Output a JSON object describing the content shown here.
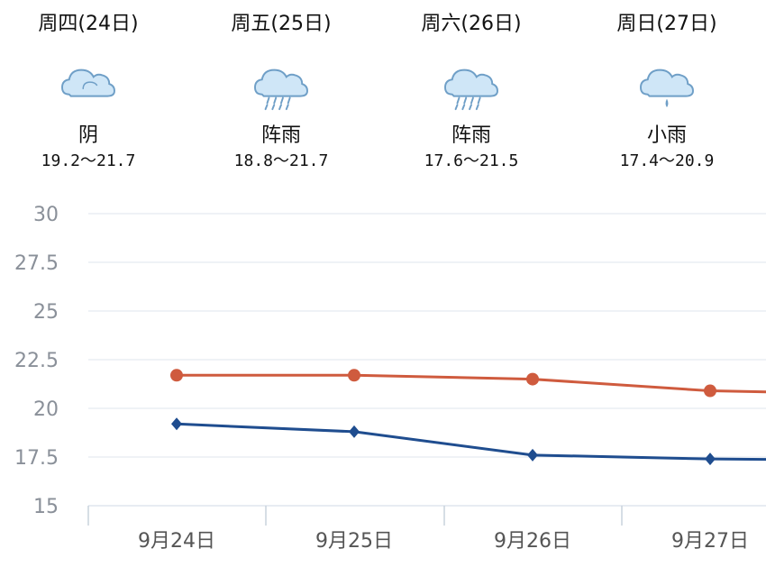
{
  "forecast": [
    {
      "header": "周四(24日)",
      "icon": "cloudy-icon",
      "condition": "阴",
      "range": "19.2～21.7"
    },
    {
      "header": "周五(25日)",
      "icon": "shower-rain-icon",
      "condition": "阵雨",
      "range": "18.8～21.7"
    },
    {
      "header": "周六(26日)",
      "icon": "shower-rain-icon",
      "condition": "阵雨",
      "range": "17.6～21.5"
    },
    {
      "header": "周日(27日)",
      "icon": "light-rain-icon",
      "condition": "小雨",
      "range": "17.4～20.9"
    }
  ],
  "colors": {
    "high": "#cf5b3e",
    "low": "#1f4d8f",
    "grid": "#dfe6ee",
    "axis_text": "#8a9099",
    "cloud_fill": "#cfe6f7",
    "cloud_stroke": "#6f9fc7",
    "rain": "#6f9fc7"
  },
  "chart_data": {
    "type": "line",
    "categories": [
      "9月24日",
      "9月25日",
      "9月26日",
      "9月27日"
    ],
    "series": [
      {
        "values": [
          21.7,
          21.7,
          21.5,
          20.9
        ]
      },
      {
        "values": [
          19.2,
          18.8,
          17.6,
          17.4
        ]
      }
    ],
    "yticks": [
      "30",
      "27.5",
      "25",
      "22.5",
      "20",
      "17.5",
      "15"
    ],
    "ylim": [
      15,
      30
    ],
    "grid": true
  }
}
